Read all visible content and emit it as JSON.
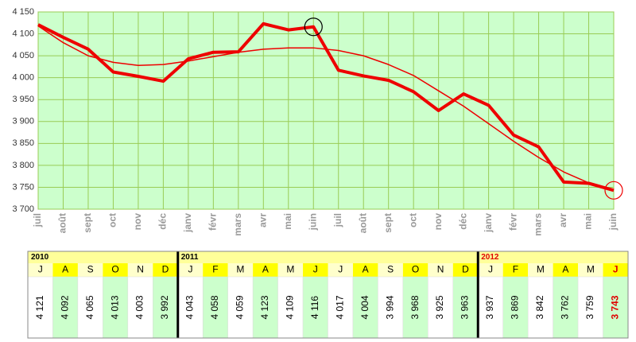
{
  "chart_data": {
    "type": "line",
    "categories": [
      "juil",
      "août",
      "sept",
      "oct",
      "nov",
      "déc",
      "janv",
      "févr",
      "mars",
      "avr",
      "mai",
      "juin",
      "juil",
      "août",
      "sept",
      "oct",
      "nov",
      "déc",
      "janv",
      "févr",
      "mars",
      "avr",
      "mai",
      "juin"
    ],
    "series": [
      {
        "color": "#ee0000",
        "width": 4,
        "values": [
          4121,
          4092,
          4065,
          4013,
          4003,
          3992,
          4043,
          4058,
          4059,
          4123,
          4109,
          4116,
          4017,
          4004,
          3994,
          3968,
          3925,
          3963,
          3937,
          3869,
          3842,
          3762,
          3759,
          3743
        ]
      },
      {
        "color": "#ee0000",
        "width": 1.5,
        "values": [
          4118,
          4080,
          4050,
          4035,
          4028,
          4030,
          4038,
          4048,
          4058,
          4065,
          4068,
          4068,
          4062,
          4050,
          4030,
          4005,
          3970,
          3935,
          3895,
          3855,
          3818,
          3785,
          3760,
          3745
        ]
      }
    ],
    "value_labels": [
      "4 121",
      "4 092",
      "4 065",
      "4 013",
      "4 003",
      "3 992",
      "4 043",
      "4 058",
      "4 059",
      "4 123",
      "4 109",
      "4 116",
      "4 017",
      "4 004",
      "3 994",
      "3 968",
      "3 925",
      "3 963",
      "3 937",
      "3 869",
      "3 842",
      "3 762",
      "3 759",
      "3 743"
    ],
    "ylim": [
      3700,
      4150
    ],
    "yticks": [
      {
        "value": 3700,
        "label": "3 700"
      },
      {
        "value": 3750,
        "label": "3 750"
      },
      {
        "value": 3800,
        "label": "3 800"
      },
      {
        "value": 3850,
        "label": "3 850"
      },
      {
        "value": 3900,
        "label": "3 900"
      },
      {
        "value": 3950,
        "label": "3 950"
      },
      {
        "value": 4000,
        "label": "4 000"
      },
      {
        "value": 4050,
        "label": "4 050"
      },
      {
        "value": 4100,
        "label": "4 100"
      },
      {
        "value": 4150,
        "label": "4 150"
      }
    ],
    "grid": true,
    "highlights": [
      {
        "index": 11,
        "color": "#000000"
      },
      {
        "index": 23,
        "color": "#ee0000"
      }
    ]
  },
  "table": {
    "years": [
      {
        "label": "2010",
        "column": 0
      },
      {
        "label": "2011",
        "column": 6
      },
      {
        "label": "2012",
        "column": 18,
        "color": "#e00000"
      }
    ],
    "months": [
      "J",
      "A",
      "S",
      "O",
      "N",
      "D",
      "J",
      "F",
      "M",
      "A",
      "M",
      "J",
      "J",
      "A",
      "S",
      "O",
      "N",
      "D",
      "J",
      "F",
      "M",
      "A",
      "M",
      "J"
    ],
    "highlight_column": 23,
    "highlight_color": "#e00000"
  }
}
